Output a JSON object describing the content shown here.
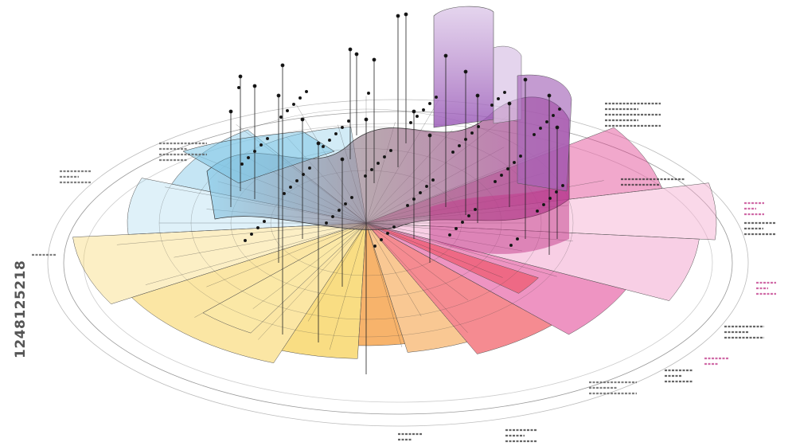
{
  "stock_id": "1248125218",
  "colors": {
    "yellow": "#f7d25a",
    "orange": "#f49a3a",
    "red": "#ee3d47",
    "magenta": "#e03d8f",
    "pink": "#f3a8cf",
    "violet": "#9b5bb8",
    "lilac": "#d9c2e6",
    "cyan": "#7fc6e6",
    "line": "#222222"
  }
}
